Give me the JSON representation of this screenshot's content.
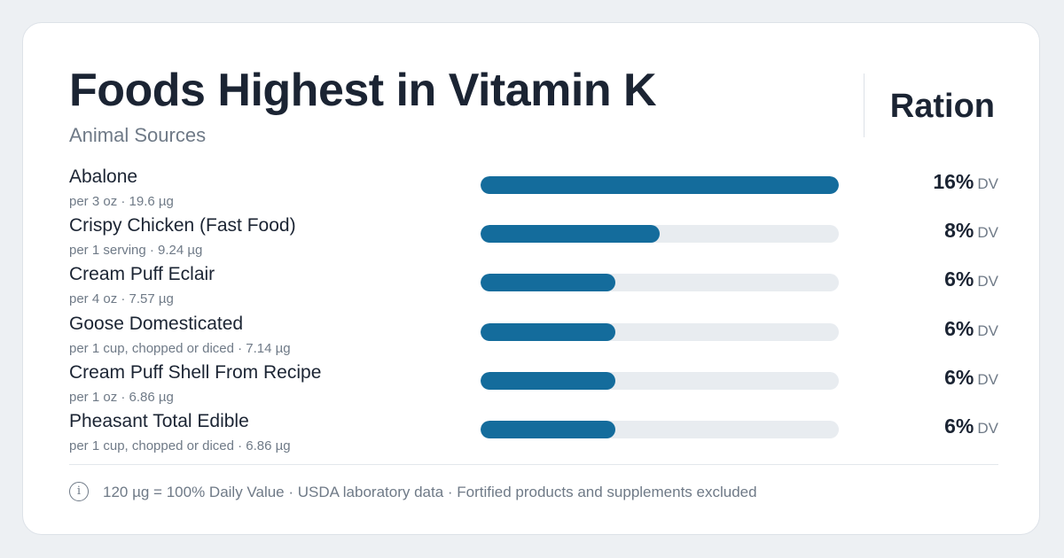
{
  "header": {
    "title": "Foods Highest in Vitamin K",
    "subtitle": "Animal Sources",
    "brand": "Ration"
  },
  "colors": {
    "bar_fill": "#146c9c",
    "bar_track": "#e8ecf0",
    "text_primary": "#1b2433",
    "text_secondary": "#6f7a87"
  },
  "chart_data": {
    "type": "bar",
    "orientation": "horizontal",
    "title": "Foods Highest in Vitamin K",
    "subtitle": "Animal Sources",
    "categories": [
      "Abalone",
      "Crispy Chicken (Fast Food)",
      "Cream Puff Eclair",
      "Goose Domesticated",
      "Cream Puff Shell From Recipe",
      "Pheasant Total Edible"
    ],
    "details": [
      "per 3 oz · 19.6 µg",
      "per 1 serving · 9.24 µg",
      "per 4 oz · 7.57 µg",
      "per 1 cup, chopped or diced · 7.14 µg",
      "per 1 oz · 6.86 µg",
      "per 1 cup, chopped or diced · 6.86 µg"
    ],
    "values": [
      16,
      8,
      6,
      6,
      6,
      6
    ],
    "value_labels": [
      "16%",
      "8%",
      "6%",
      "6%",
      "6%",
      "6%"
    ],
    "value_unit": "DV",
    "bar_fill_fraction": [
      1.0,
      0.5,
      0.375,
      0.375,
      0.375,
      0.375
    ],
    "grid": false,
    "legend": "none"
  },
  "footer": {
    "icon": "info-icon",
    "icon_glyph": "i",
    "note": "120 µg = 100% Daily Value · USDA laboratory data · Fortified products and supplements excluded"
  }
}
